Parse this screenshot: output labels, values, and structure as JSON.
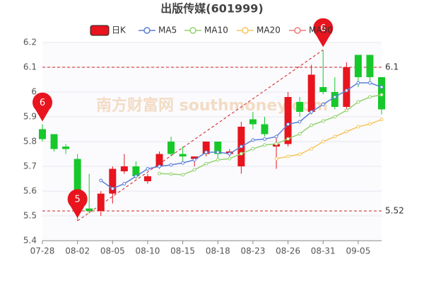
{
  "chart_data": {
    "type": "candlestick",
    "title": "出版传媒(601999)",
    "watermark": "南方财富网 southmoney.com",
    "categories": [
      "07-28",
      null,
      null,
      "08-02",
      null,
      null,
      "08-05",
      null,
      null,
      "08-10",
      null,
      null,
      "08-15",
      null,
      null,
      "08-18",
      null,
      null,
      "08-23",
      null,
      null,
      "08-26",
      null,
      null,
      "08-31",
      null,
      null,
      "09-05",
      null,
      null
    ],
    "ylim": [
      5.4,
      6.2
    ],
    "yticks": [
      5.4,
      5.5,
      5.6,
      5.7,
      5.8,
      5.9,
      6,
      6.1,
      6.2
    ],
    "grid": true,
    "candles": {
      "name": "日K",
      "up_color": "#e8141e",
      "down_color": "#17c82a",
      "open": [
        5.85,
        5.83,
        5.78,
        5.73,
        5.53,
        5.52,
        5.59,
        5.68,
        5.7,
        5.64,
        5.7,
        5.8,
        5.75,
        5.73,
        5.75,
        5.8,
        5.75,
        5.7,
        5.89,
        5.87,
        5.78,
        5.79,
        5.96,
        5.92,
        6.02,
        6.0,
        5.94,
        6.15,
        6.15,
        6.06
      ],
      "high": [
        5.87,
        5.83,
        5.79,
        5.75,
        5.67,
        5.6,
        5.7,
        5.75,
        5.72,
        5.67,
        5.76,
        5.82,
        5.78,
        5.74,
        5.8,
        5.8,
        5.77,
        5.88,
        5.92,
        5.9,
        5.82,
        6.0,
        5.98,
        6.11,
        6.17,
        6.06,
        6.12,
        6.15,
        6.15,
        6.06
      ],
      "low": [
        5.8,
        5.76,
        5.75,
        5.48,
        5.51,
        5.5,
        5.55,
        5.67,
        5.65,
        5.63,
        5.69,
        5.74,
        5.72,
        5.7,
        5.74,
        5.73,
        5.74,
        5.67,
        5.85,
        5.82,
        5.69,
        5.78,
        5.9,
        5.91,
        5.99,
        5.93,
        5.92,
        6.02,
        6.04,
        5.91
      ],
      "close": [
        5.81,
        5.77,
        5.77,
        5.52,
        5.52,
        5.59,
        5.69,
        5.7,
        5.66,
        5.66,
        5.75,
        5.75,
        5.74,
        5.74,
        5.8,
        5.75,
        5.76,
        5.86,
        5.87,
        5.83,
        5.79,
        5.98,
        5.92,
        6.07,
        6.0,
        5.94,
        6.1,
        6.06,
        6.06,
        5.93
      ]
    },
    "series": [
      {
        "name": "MA5",
        "color": "#5b7fd6",
        "values": [
          null,
          null,
          null,
          null,
          null,
          5.643,
          5.61,
          5.63,
          5.66,
          5.69,
          5.7,
          5.706,
          5.714,
          5.726,
          5.757,
          5.757,
          5.751,
          5.78,
          5.806,
          5.81,
          5.82,
          5.87,
          5.88,
          5.92,
          5.95,
          5.98,
          6.006,
          6.037,
          6.037,
          6.02
        ]
      },
      {
        "name": "MA10",
        "color": "#93d26c",
        "values": [
          null,
          null,
          null,
          null,
          null,
          null,
          null,
          null,
          null,
          null,
          5.671,
          5.669,
          5.666,
          5.686,
          5.711,
          5.726,
          5.731,
          5.751,
          5.771,
          5.786,
          5.791,
          5.811,
          5.831,
          5.866,
          5.883,
          5.9,
          5.926,
          5.96,
          5.98,
          5.989
        ]
      },
      {
        "name": "MA20",
        "color": "#f5c55a",
        "values": [
          null,
          null,
          null,
          null,
          null,
          null,
          null,
          null,
          null,
          null,
          null,
          null,
          null,
          null,
          null,
          null,
          null,
          null,
          null,
          null,
          5.731,
          5.74,
          5.749,
          5.771,
          5.8,
          5.82,
          5.84,
          5.86,
          5.871,
          5.889
        ]
      },
      {
        "name": "MA30",
        "color": "#f07a7a",
        "values": [
          null,
          null,
          null,
          null,
          null,
          null,
          null,
          null,
          null,
          null,
          null,
          null,
          null,
          null,
          null,
          null,
          null,
          null,
          null,
          null,
          null,
          null,
          null,
          null,
          null,
          null,
          null,
          null,
          null,
          null
        ]
      }
    ],
    "hlines": [
      {
        "value": 6.1,
        "label": "6.1"
      },
      {
        "value": 5.52,
        "label": "5.52"
      }
    ],
    "markers": [
      {
        "label": "6",
        "category": "07-28",
        "anchor": "high"
      },
      {
        "label": "5",
        "category": "08-02",
        "anchor": "low"
      },
      {
        "label": "6",
        "category": "08-31",
        "anchor": "high"
      }
    ]
  }
}
